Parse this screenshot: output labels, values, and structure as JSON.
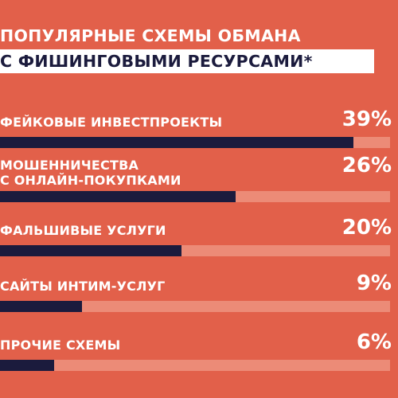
{
  "chart_data": {
    "type": "bar",
    "title_line1": "ПОПУЛЯРНЫЕ СХЕМЫ ОБМАНА",
    "title_line2": "С ФИШИНГОВЫМИ РЕСУРСАМИ*",
    "categories": [
      [
        "ФЕЙКОВЫЕ ИНВЕСТПРОЕКТЫ"
      ],
      [
        "МОШЕННИЧЕСТВА",
        "С ОНЛАЙН-ПОКУПКАМИ"
      ],
      [
        "ФАЛЬШИВЫЕ УСЛУГИ"
      ],
      [
        "САЙТЫ ИНТИМ-УСЛУГ"
      ],
      [
        "ПРОЧИЕ СХЕМЫ"
      ]
    ],
    "values": [
      39,
      26,
      20,
      9,
      6
    ],
    "value_labels": [
      "39%",
      "26%",
      "20%",
      "9%",
      "6%"
    ],
    "ylim": [
      0,
      43
    ],
    "colors": {
      "background": "#e2604a",
      "bar": "#1b1b3d",
      "track": "#ec8b77",
      "text": "#ffffff"
    }
  }
}
